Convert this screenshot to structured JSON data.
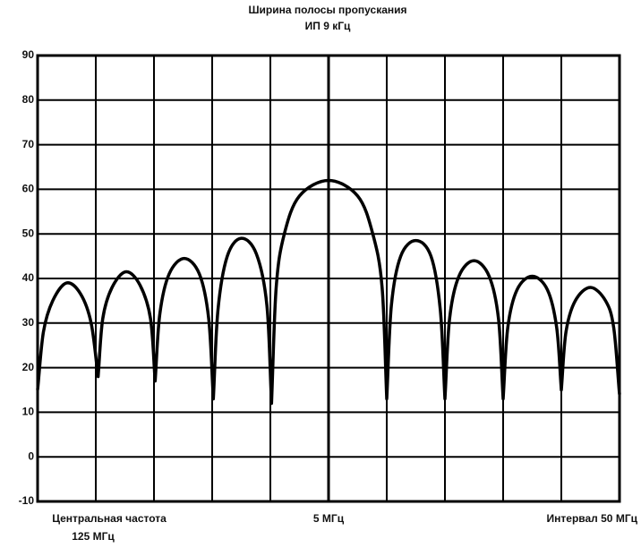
{
  "chart_data": {
    "type": "line",
    "title": "Ширина полосы пропускания",
    "subtitle": "ИП 9 кГц",
    "x_labels": {
      "left": [
        "Центральная частота",
        "125 МГц"
      ],
      "center": "5 МГц",
      "right": "Интервал 50 МГц"
    },
    "color": "#000000",
    "grid": true,
    "xlim": [
      100,
      150
    ],
    "xticks": [
      100,
      105,
      110,
      115,
      120,
      125,
      130,
      135,
      140,
      145,
      150
    ],
    "ylim": [
      -10,
      90
    ],
    "yticks": [
      -10,
      0,
      10,
      20,
      30,
      40,
      50,
      60,
      70,
      80,
      90
    ],
    "x": [
      100,
      100.5,
      101.3,
      102.5,
      103.7,
      104.6,
      105.2,
      105.6,
      106.4,
      107.6,
      108.8,
      109.7,
      110.1,
      110.5,
      111.3,
      112.6,
      113.9,
      114.7,
      115.1,
      115.5,
      116.3,
      117.5,
      118.8,
      119.7,
      120.1,
      120.5,
      121.2,
      122.5,
      125,
      127.5,
      128.8,
      129.6,
      130,
      130.4,
      131.2,
      132.5,
      133.8,
      134.6,
      135,
      135.4,
      136.2,
      137.5,
      138.8,
      139.6,
      140,
      140.4,
      141.2,
      142.5,
      143.8,
      144.6,
      145,
      145.4,
      146.2,
      147.5,
      148.8,
      149.5,
      150
    ],
    "values": [
      15,
      28,
      35,
      39,
      36.5,
      30,
      18,
      31,
      38,
      41.5,
      38.5,
      31,
      17,
      32,
      41,
      44.5,
      41,
      31,
      13,
      33,
      45,
      49,
      45.5,
      34,
      12,
      38,
      50,
      58.5,
      62,
      58.5,
      50,
      38,
      13,
      34,
      45,
      48.5,
      45,
      33,
      13,
      31,
      40.5,
      44,
      40.5,
      31,
      13,
      29,
      37.5,
      40.5,
      37.5,
      29,
      15,
      28,
      35,
      38,
      35,
      29,
      14
    ]
  }
}
